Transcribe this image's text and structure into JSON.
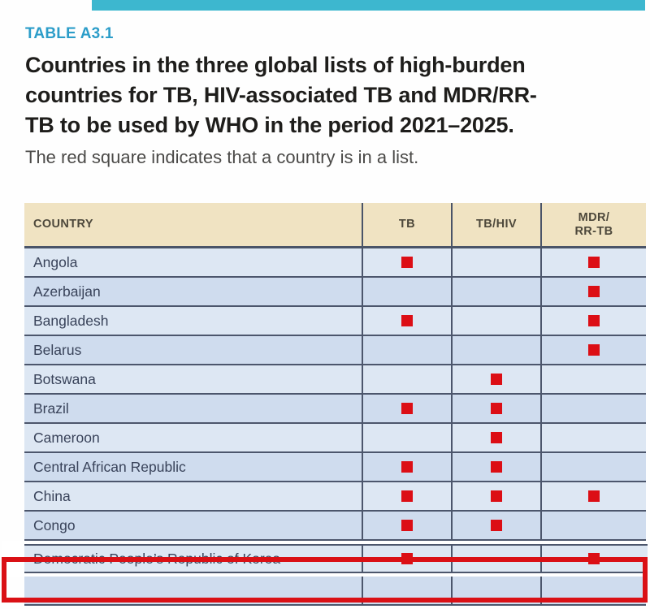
{
  "page": {
    "label": "TABLE A3.1",
    "title_lines": [
      "Countries in the three global lists of high-burden",
      "countries for TB, HIV-associated TB and MDR/RR-",
      "TB to be used by WHO in the period 2021–2025."
    ],
    "subtitle": "The red square indicates that a country is in a list."
  },
  "colors": {
    "accent_teal": "#3db7cf",
    "label_blue": "#2c9dc9",
    "header_bg": "#f0e3c2",
    "row_light": "#dde7f3",
    "row_dark": "#cfdcee",
    "grid_line": "#4c566c",
    "marker_red": "#dc0e15",
    "highlight_red": "#da1015"
  },
  "table": {
    "columns": [
      "COUNTRY",
      "TB",
      "TB/HIV",
      "MDR/\nRR-TB"
    ],
    "marker": "red-square",
    "rows": [
      {
        "country": "Angola",
        "tb": true,
        "tb_hiv": false,
        "mdr_rr_tb": true,
        "highlighted": false
      },
      {
        "country": "Azerbaijan",
        "tb": false,
        "tb_hiv": false,
        "mdr_rr_tb": true,
        "highlighted": false
      },
      {
        "country": "Bangladesh",
        "tb": true,
        "tb_hiv": false,
        "mdr_rr_tb": true,
        "highlighted": false
      },
      {
        "country": "Belarus",
        "tb": false,
        "tb_hiv": false,
        "mdr_rr_tb": true,
        "highlighted": false
      },
      {
        "country": "Botswana",
        "tb": false,
        "tb_hiv": true,
        "mdr_rr_tb": false,
        "highlighted": false
      },
      {
        "country": "Brazil",
        "tb": true,
        "tb_hiv": true,
        "mdr_rr_tb": false,
        "highlighted": false
      },
      {
        "country": "Cameroon",
        "tb": false,
        "tb_hiv": true,
        "mdr_rr_tb": false,
        "highlighted": false
      },
      {
        "country": "Central African Republic",
        "tb": true,
        "tb_hiv": true,
        "mdr_rr_tb": false,
        "highlighted": false
      },
      {
        "country": "China",
        "tb": true,
        "tb_hiv": true,
        "mdr_rr_tb": true,
        "highlighted": false
      },
      {
        "country": "Congo",
        "tb": true,
        "tb_hiv": true,
        "mdr_rr_tb": false,
        "highlighted": false
      },
      {
        "country": "Democratic People’s Republic of Korea",
        "tb": true,
        "tb_hiv": false,
        "mdr_rr_tb": true,
        "highlighted": true
      }
    ],
    "partial_row_at_bottom": true
  }
}
